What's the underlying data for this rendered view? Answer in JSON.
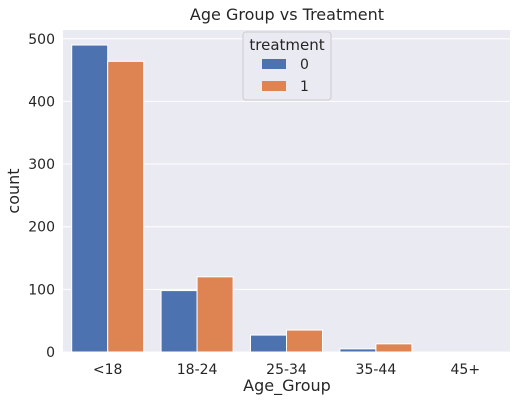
{
  "chart_data": {
    "type": "bar",
    "title": "Age Group vs Treatment",
    "xlabel": "Age_Group",
    "ylabel": "count",
    "categories": [
      "<18",
      "18-24",
      "25-34",
      "35-44",
      "45+"
    ],
    "series": [
      {
        "name": "0",
        "values": [
          490,
          98,
          27,
          5,
          0
        ]
      },
      {
        "name": "1",
        "values": [
          464,
          120,
          35,
          13,
          0
        ]
      }
    ],
    "yticks": [
      0,
      100,
      200,
      300,
      400,
      500
    ],
    "ylim": [
      0,
      514
    ],
    "legend": {
      "title": "treatment",
      "placement": "top-center"
    },
    "grid": true,
    "colors": {
      "background": "#EAEAF2",
      "grid": "#FFFFFF",
      "series": [
        "#4C72B0",
        "#DD8452"
      ]
    }
  }
}
